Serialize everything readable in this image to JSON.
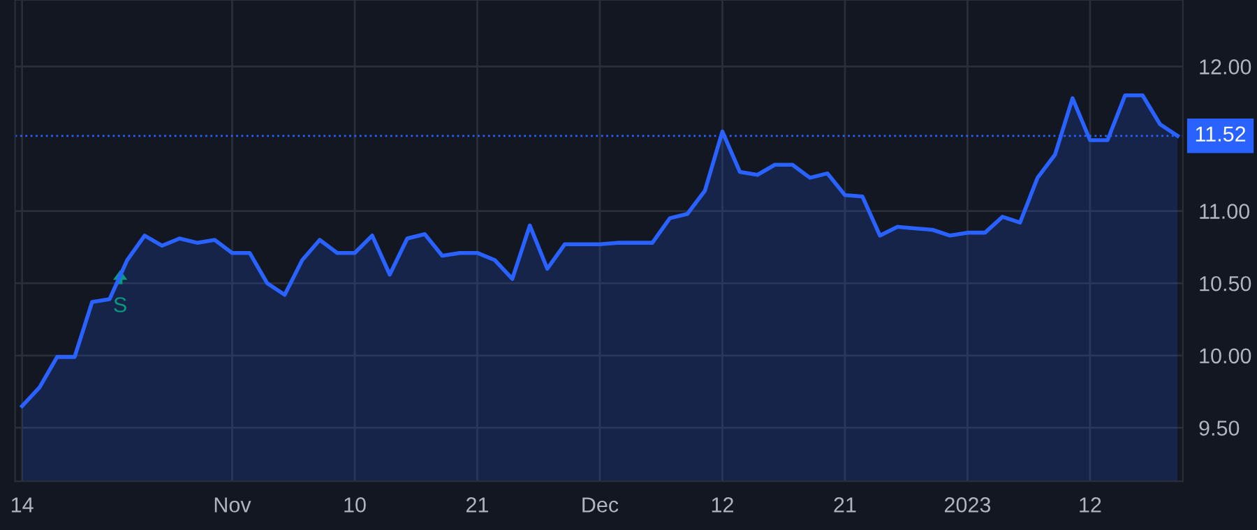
{
  "chart_data": {
    "type": "area",
    "categories": [
      "14",
      null,
      null,
      null,
      null,
      null,
      null,
      null,
      null,
      null,
      null,
      null,
      "Nov",
      null,
      null,
      null,
      null,
      null,
      null,
      "10",
      null,
      null,
      null,
      null,
      null,
      null,
      "21",
      null,
      null,
      null,
      null,
      null,
      null,
      "Dec",
      null,
      null,
      null,
      null,
      null,
      null,
      "12",
      null,
      null,
      null,
      null,
      null,
      null,
      "21",
      null,
      null,
      null,
      null,
      null,
      null,
      "2023",
      null,
      null,
      null,
      null,
      null,
      null,
      "12",
      null,
      null,
      null,
      null,
      null
    ],
    "series": [
      {
        "color": "#2962ff",
        "values": [
          9.65,
          9.78,
          9.99,
          9.99,
          10.37,
          10.39,
          10.66,
          10.83,
          10.76,
          10.81,
          10.78,
          10.8,
          10.71,
          10.71,
          10.5,
          10.42,
          10.66,
          10.8,
          10.71,
          10.71,
          10.83,
          10.56,
          10.81,
          10.84,
          10.69,
          10.71,
          10.71,
          10.66,
          10.53,
          10.9,
          10.6,
          10.77,
          10.77,
          10.77,
          10.78,
          10.78,
          10.78,
          10.95,
          10.98,
          11.14,
          11.55,
          11.27,
          11.25,
          11.32,
          11.32,
          11.23,
          11.26,
          11.11,
          11.1,
          10.83,
          10.89,
          10.88,
          10.87,
          10.83,
          10.85,
          10.85,
          10.96,
          10.92,
          11.23,
          11.39,
          11.78,
          11.49,
          11.49,
          11.8,
          11.8,
          11.6,
          11.52
        ]
      }
    ],
    "ylim": [
      9.13,
      12.46
    ],
    "yticks": [
      {
        "value": 9.5,
        "label": "9.50"
      },
      {
        "value": 10,
        "label": "10.00"
      },
      {
        "value": 10.5,
        "label": "10.50"
      },
      {
        "value": 11,
        "label": "11.00"
      },
      {
        "value": 12,
        "label": "12.00"
      }
    ],
    "ref_lines": [
      {
        "axis": "y",
        "value": 11.52,
        "label": "11.52",
        "color": "#2962ff",
        "line_style": "dotted"
      }
    ],
    "annotations": [
      {
        "text": "S",
        "y": 10.58
      }
    ],
    "grid": true,
    "legend": false
  }
}
